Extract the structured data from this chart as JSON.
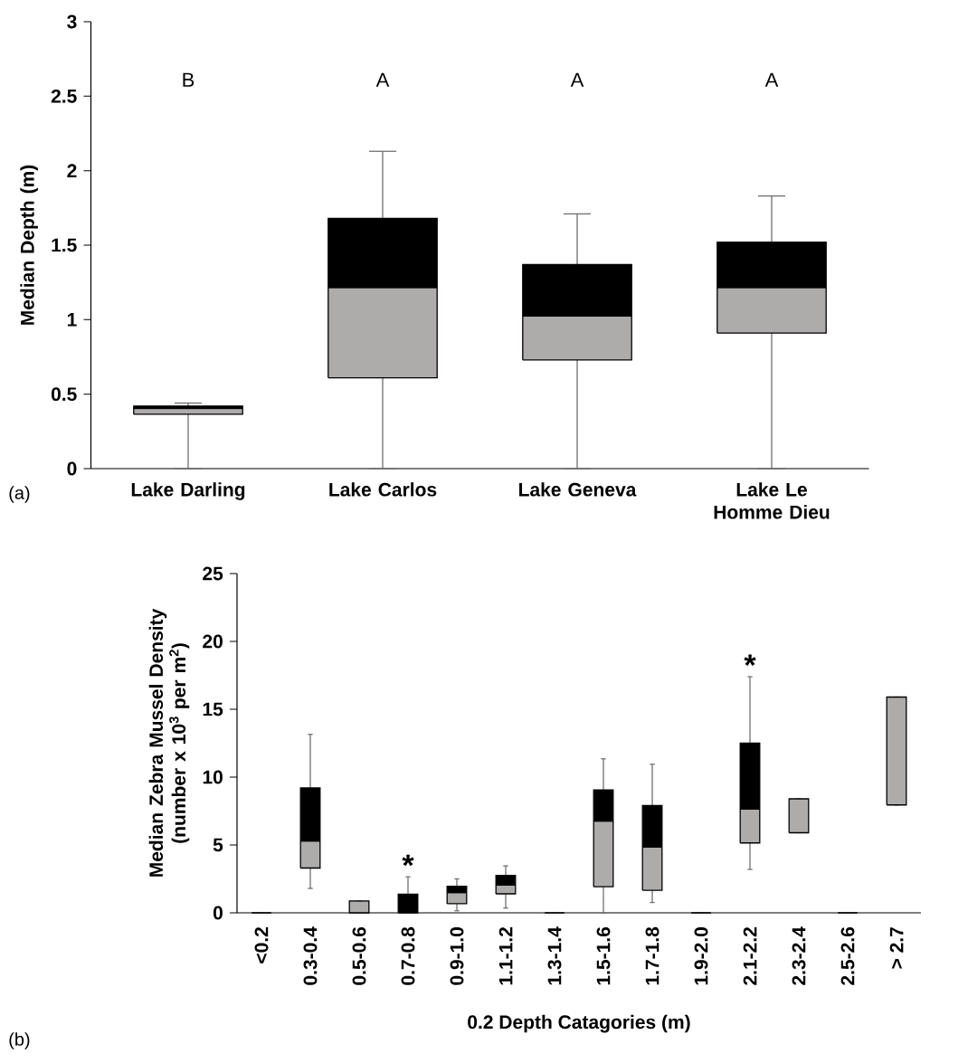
{
  "chart_data": [
    {
      "type": "box",
      "ylabel": "Median Depth (m)",
      "categories": [
        "Lake Darling",
        "Lake Carlos",
        "Lake Geneva",
        "Lake Le Homme Dieu"
      ],
      "boxes": [
        {
          "low": 0,
          "q1": 0.365,
          "median": 0.4,
          "q3": 0.42,
          "high": 0.44
        },
        {
          "low": 0,
          "q1": 0.61,
          "median": 1.21,
          "q3": 1.68,
          "high": 2.13
        },
        {
          "low": 0,
          "q1": 0.73,
          "median": 1.02,
          "q3": 1.37,
          "high": 1.71
        },
        {
          "low": 0,
          "q1": 0.91,
          "median": 1.21,
          "q3": 1.52,
          "high": 1.83
        }
      ],
      "ylim": [
        0,
        3
      ],
      "yticks": [
        0,
        0.5,
        1,
        1.5,
        2,
        2.5,
        3
      ],
      "annotations": [
        "B",
        "A",
        "A",
        "A",
        "(a)"
      ]
    },
    {
      "type": "box",
      "xlabel": "0.2 Depth Catagories (m)",
      "ylabel": "Median Zebra Mussel Density (number x 10$^{3}$ per m$^{2}$)",
      "categories": [
        "<0.2",
        "0.3-0.4",
        "0.5-0.6",
        "0.7-0.8",
        "0.9-1.0",
        "1.1-1.2",
        "1.3-1.4",
        "1.5-1.6",
        "1.7-1.8",
        "1.9-2.0",
        "2.1-2.2",
        "2.3-2.4",
        "2.5-2.6",
        "> 2.7"
      ],
      "boxes": [
        {
          "low": 0,
          "q1": 0,
          "median": 0,
          "q3": 0,
          "high": 0
        },
        {
          "low": 1.8,
          "q1": 3.3,
          "median": 5.24,
          "q3": 9.2,
          "high": 13.15
        },
        {
          "low": 0,
          "q1": 0,
          "median": 0.85,
          "q3": 0.87,
          "high": 0.87
        },
        {
          "low": 0,
          "q1": 0,
          "median": 0,
          "q3": 1.37,
          "high": 2.65
        },
        {
          "low": 0.15,
          "q1": 0.67,
          "median": 1.43,
          "q3": 1.95,
          "high": 2.5
        },
        {
          "low": 0.35,
          "q1": 1.4,
          "median": 2.0,
          "q3": 2.76,
          "high": 3.46
        },
        {
          "low": 0,
          "q1": 0,
          "median": 0,
          "q3": 0,
          "high": 0
        },
        {
          "low": 0,
          "q1": 1.92,
          "median": 6.7,
          "q3": 9.05,
          "high": 11.35
        },
        {
          "low": 0.76,
          "q1": 1.66,
          "median": 4.8,
          "q3": 7.9,
          "high": 10.95
        },
        {
          "low": 0,
          "q1": 0,
          "median": 0,
          "q3": 0,
          "high": 0
        },
        {
          "low": 3.2,
          "q1": 5.15,
          "median": 7.6,
          "q3": 12.5,
          "high": 17.4
        },
        {
          "low": 5.9,
          "q1": 5.9,
          "median": 8.4,
          "q3": 8.4,
          "high": 8.4
        },
        {
          "low": 0,
          "q1": 0,
          "median": 0,
          "q3": 0,
          "high": 0
        },
        {
          "low": 7.95,
          "q1": 7.95,
          "median": 15.9,
          "q3": 15.9,
          "high": 15.9
        }
      ],
      "ylim": [
        0,
        25
      ],
      "yticks": [
        0,
        5,
        10,
        15,
        20,
        25
      ],
      "annotations": [
        "*",
        "*",
        "(b)"
      ]
    }
  ]
}
